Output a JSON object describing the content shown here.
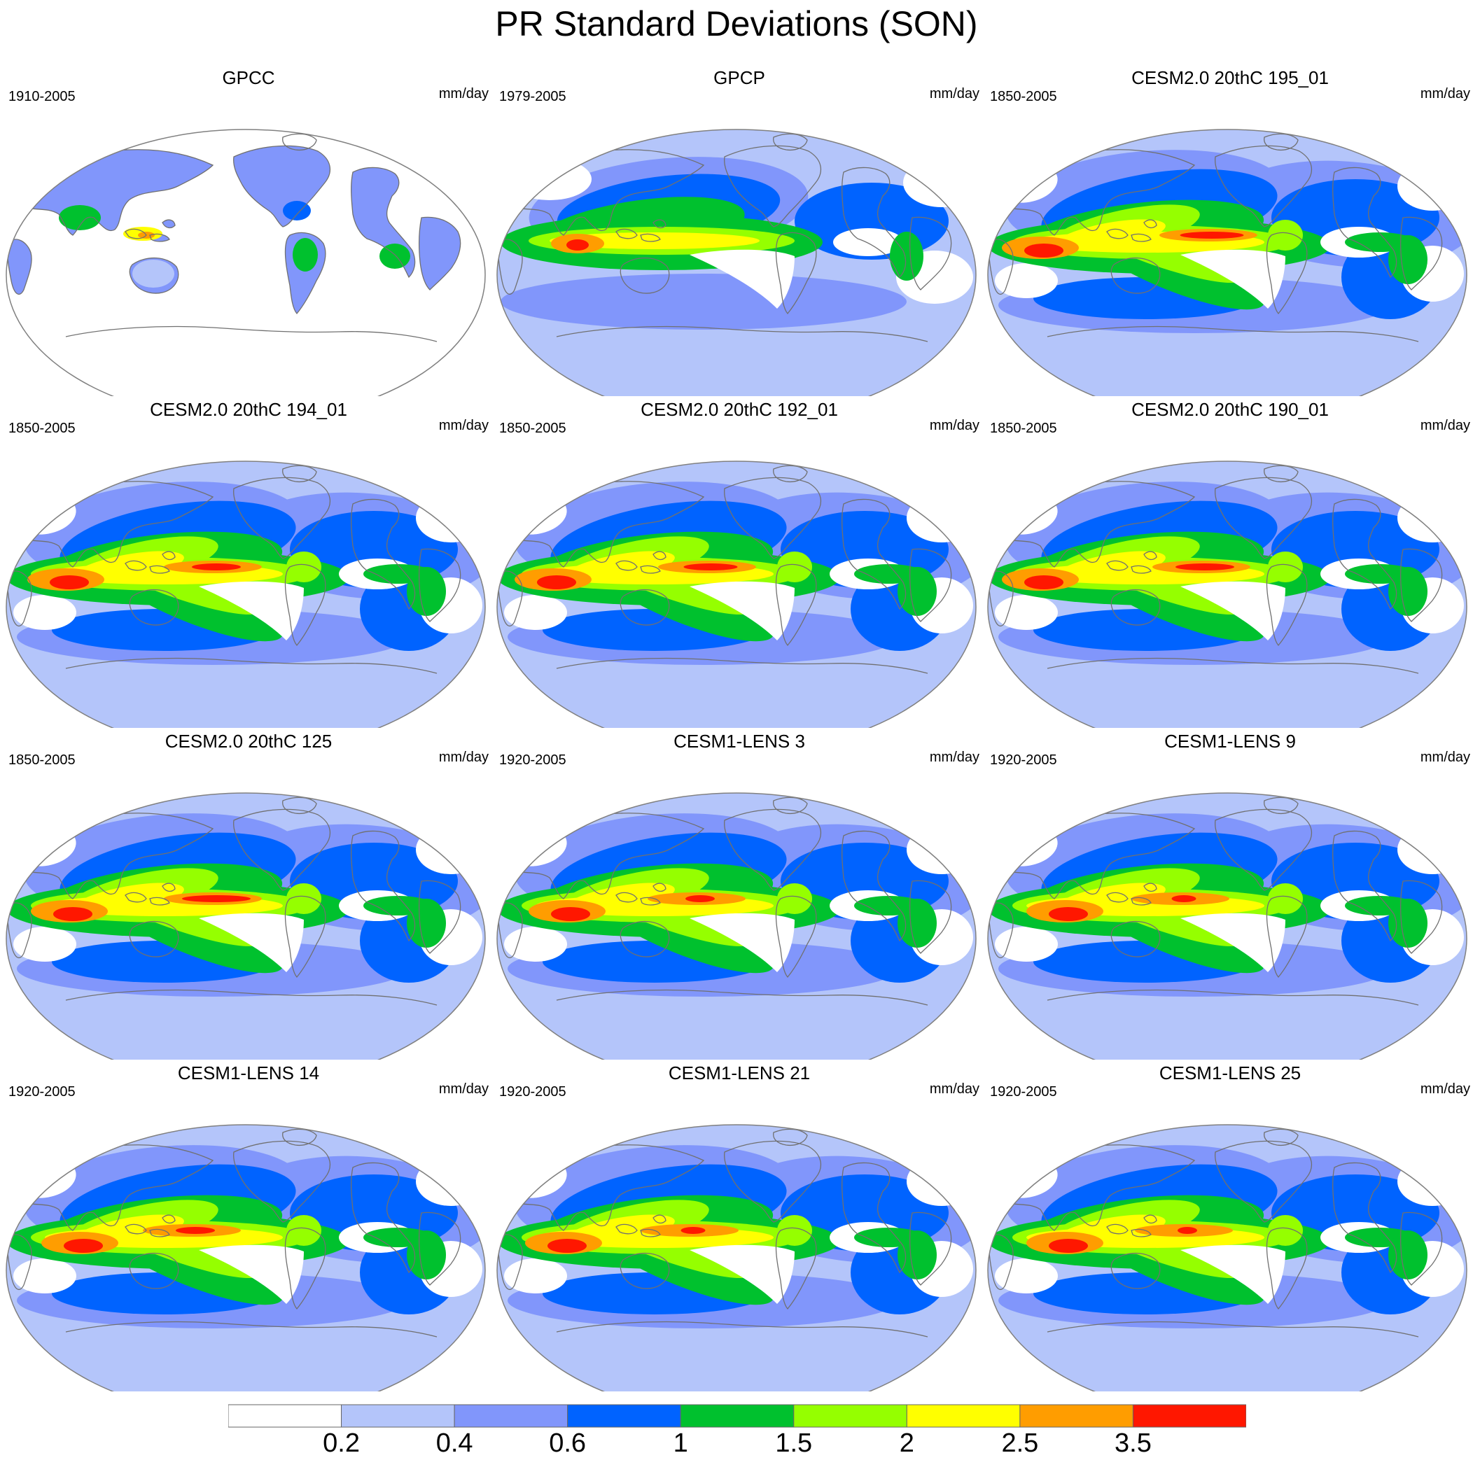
{
  "title": "PR Standard Deviations (SON)",
  "colors": {
    "levels": [
      "#ffffff",
      "#b4c5fa",
      "#8196fb",
      "#0063ff",
      "#00c12e",
      "#95ff00",
      "#ffff00",
      "#ff9d00",
      "#ff1700"
    ],
    "coastline": "#707070"
  },
  "panels": [
    {
      "title": "GPCC",
      "period": "1910-2005",
      "units": "mm/day",
      "land_only": true
    },
    {
      "title": "GPCP",
      "period": "1979-2005",
      "units": "mm/day",
      "land_only": false
    },
    {
      "title": "CESM2.0 20thC 195_01",
      "period": "1850-2005",
      "units": "mm/day",
      "land_only": false
    },
    {
      "title": "CESM2.0 20thC 194_01",
      "period": "1850-2005",
      "units": "mm/day",
      "land_only": false
    },
    {
      "title": "CESM2.0 20thC 192_01",
      "period": "1850-2005",
      "units": "mm/day",
      "land_only": false
    },
    {
      "title": "CESM2.0 20thC 190_01",
      "period": "1850-2005",
      "units": "mm/day",
      "land_only": false
    },
    {
      "title": "CESM2.0 20thC 125",
      "period": "1850-2005",
      "units": "mm/day",
      "land_only": false
    },
    {
      "title": "CESM1-LENS 3",
      "period": "1920-2005",
      "units": "mm/day",
      "land_only": false
    },
    {
      "title": "CESM1-LENS 9",
      "period": "1920-2005",
      "units": "mm/day",
      "land_only": false
    },
    {
      "title": "CESM1-LENS 14",
      "period": "1920-2005",
      "units": "mm/day",
      "land_only": false
    },
    {
      "title": "CESM1-LENS 21",
      "period": "1920-2005",
      "units": "mm/day",
      "land_only": false
    },
    {
      "title": "CESM1-LENS 25",
      "period": "1920-2005",
      "units": "mm/day",
      "land_only": false
    }
  ],
  "colorbar": {
    "labels": [
      "0.2",
      "0.4",
      "0.6",
      "1",
      "1.5",
      "2",
      "2.5",
      "3.5"
    ]
  }
}
